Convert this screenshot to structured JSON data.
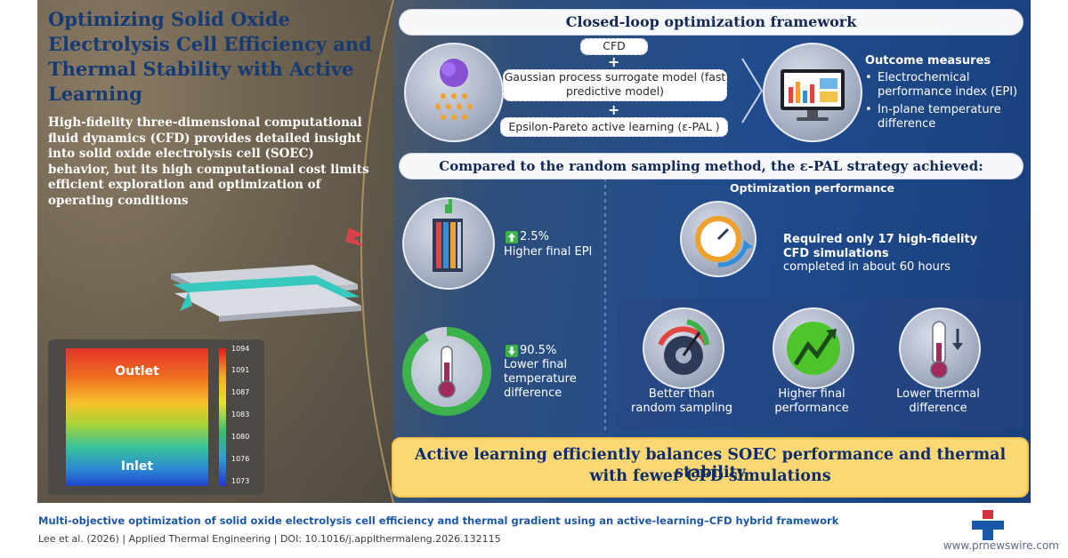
{
  "title": "Optimizing Solid Oxide Electrolysis Cell Efficiency and Thermal Stability with Active Learning",
  "intro": "High-fidelity three-dimensional computational fluid dynamics (CFD) provides detailed insight into solid oxide electrolysis cell (SOEC) behavior, but its high computational cost limits efficient exploration and optimization of operating conditions",
  "heatmap": {
    "outlet_label": "Outlet",
    "inlet_label": "Inlet",
    "scale_ticks": [
      "1094",
      "1091",
      "1087",
      "1083",
      "1080",
      "1076",
      "1073"
    ]
  },
  "framework": {
    "header": "Closed-loop optimization framework",
    "cfd": "CFD",
    "plus": "+",
    "gp": "Gaussian process surrogate model (fast predictive model)",
    "epal": "Epsilon-Pareto active learning (ε-PAL )",
    "outcome_title": "Outcome measures",
    "outcome_items": [
      "Electrochemical performance index (EPI)",
      "In-plane temperature difference"
    ]
  },
  "comparison": {
    "header": "Compared to the random sampling method, the ε-PAL strategy achieved:",
    "epi_value": "2.5%",
    "epi_label": "Higher final EPI",
    "temp_value": "90.5%",
    "temp_label": "Lower final temperature difference",
    "opt_title": "Optimization performance",
    "sim_bold": "Required only 17 high-fidelity CFD simulations",
    "sim_normal": "completed in about 60 hours",
    "benefits": [
      "Better than random sampling",
      "Higher final performance",
      "Lower thermal difference"
    ]
  },
  "conclusion": [
    "Active learning efficiently balances SOEC performance and thermal stability",
    "with fewer CFD simulations"
  ],
  "caption": {
    "title": "Multi-objective optimization of solid oxide electrolysis cell efficiency and thermal gradient using an active-learning–CFD hybrid framework",
    "cite": "Lee et al. (2026)  |  Applied Thermal Engineering  |  DOI: 10.1016/j.applthermaleng.2026.132115"
  },
  "source": "www.prnewswire.com",
  "colors": {
    "accent_yellow": "#fbd874",
    "title_navy": "#163a73",
    "up_green": "#3bb34a"
  }
}
